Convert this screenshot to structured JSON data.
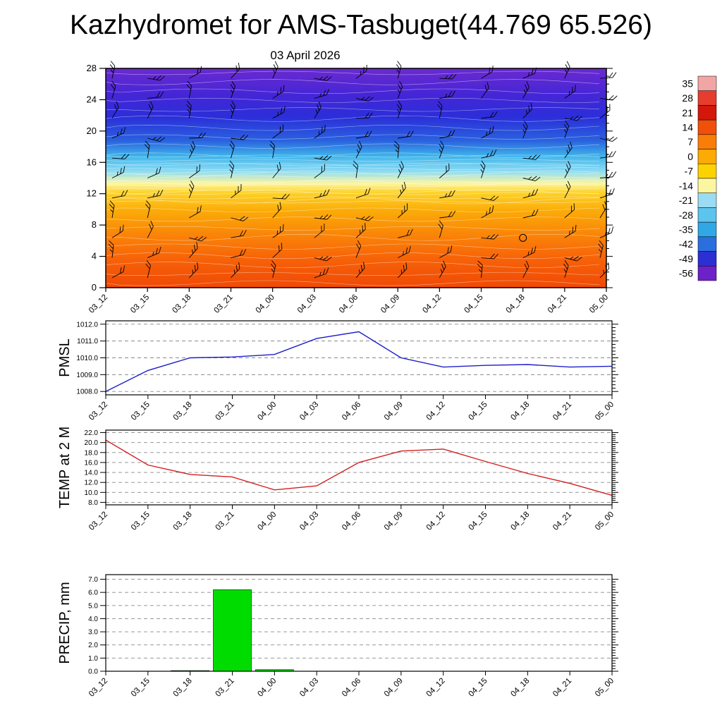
{
  "page_title": "Kazhydromet for AMS-Tasbuget(44.769 65.526)",
  "subtitle": "03 April 2026",
  "time_labels": [
    "03_12",
    "03_15",
    "03_18",
    "03_21",
    "04_00",
    "04_03",
    "04_06",
    "04_09",
    "04_12",
    "04_15",
    "04_18",
    "04_21",
    "05_00"
  ],
  "chart_data": [
    {
      "id": "cross_section",
      "type": "heatmap",
      "title": "03 April 2026",
      "description": "Time-height temperature cross-section with wind barbs and white temperature contours",
      "x": [
        "03_12",
        "03_15",
        "03_18",
        "03_21",
        "04_00",
        "04_03",
        "04_06",
        "04_09",
        "04_12",
        "04_15",
        "04_18",
        "04_21",
        "05_00"
      ],
      "ylim": [
        0,
        28
      ],
      "yticks": [
        0,
        4,
        8,
        12,
        16,
        20,
        24,
        28
      ],
      "ytick_labels": [
        "0",
        "4",
        "8",
        "12",
        "16",
        "20",
        "24",
        "28"
      ],
      "colorbar": {
        "ticks": [
          "35",
          "28",
          "21",
          "14",
          "7",
          "0",
          "-7",
          "-14",
          "-21",
          "-28",
          "-35",
          "-42",
          "-49",
          "-56"
        ],
        "colors": [
          "#f2a5a5",
          "#e63d2e",
          "#d3170a",
          "#f1500a",
          "#fa7d08",
          "#fcaa06",
          "#fdd203",
          "#fdf6a0",
          "#9adcf3",
          "#5cc4ed",
          "#30a8e6",
          "#2a6fdd",
          "#2b2fd4",
          "#6d21c8"
        ]
      },
      "gradient": [
        {
          "pos": 0.0,
          "color": "#6b2ad0"
        },
        {
          "pos": 0.12,
          "color": "#4526d6"
        },
        {
          "pos": 0.22,
          "color": "#2b2ed9"
        },
        {
          "pos": 0.33,
          "color": "#2a62df"
        },
        {
          "pos": 0.4,
          "color": "#3fb4ea"
        },
        {
          "pos": 0.47,
          "color": "#8edcf3"
        },
        {
          "pos": 0.525,
          "color": "#fdf6a0"
        },
        {
          "pos": 0.565,
          "color": "#fdd32a"
        },
        {
          "pos": 0.65,
          "color": "#fbab08"
        },
        {
          "pos": 0.76,
          "color": "#fa8408"
        },
        {
          "pos": 0.87,
          "color": "#f76208"
        },
        {
          "pos": 1.0,
          "color": "#ef4a06"
        }
      ],
      "overlays": [
        "temperature-contours",
        "wind-barbs",
        "calm-wind-circle"
      ]
    },
    {
      "id": "pmsl",
      "type": "line",
      "ylabel": "PMSL",
      "line_color": "#1e1ec8",
      "grid": "dashed",
      "x": [
        "03_12",
        "03_15",
        "03_18",
        "03_21",
        "04_00",
        "04_03",
        "04_06",
        "04_09",
        "04_12",
        "04_15",
        "04_18",
        "04_21",
        "05_00"
      ],
      "values": [
        1008.0,
        1009.25,
        1010.0,
        1010.05,
        1010.2,
        1011.15,
        1011.55,
        1010.0,
        1009.45,
        1009.55,
        1009.6,
        1009.45,
        1009.5
      ],
      "ylim": [
        1007.8,
        1012.2
      ],
      "yticks": [
        1008,
        1009,
        1010,
        1011,
        1012
      ],
      "ytick_labels": [
        "1008.0",
        "1009.0",
        "1010.0",
        "1011.0",
        "1012.0"
      ]
    },
    {
      "id": "temp2m",
      "type": "line",
      "ylabel": "TEMP at 2 M",
      "line_color": "#d42020",
      "grid": "dashed",
      "x": [
        "03_12",
        "03_15",
        "03_18",
        "03_21",
        "04_00",
        "04_03",
        "04_06",
        "04_09",
        "04_12",
        "04_15",
        "04_18",
        "04_21",
        "05_00"
      ],
      "values": [
        20.5,
        15.5,
        13.6,
        13.1,
        10.5,
        11.3,
        16.0,
        18.3,
        18.7,
        16.2,
        13.8,
        11.8,
        9.4
      ],
      "ylim": [
        7.5,
        22.5
      ],
      "yticks": [
        8,
        10,
        12,
        14,
        16,
        18,
        20,
        22
      ],
      "ytick_labels": [
        "8.0",
        "10.0",
        "12.0",
        "14.0",
        "16.0",
        "18.0",
        "20.0",
        "22.0"
      ]
    },
    {
      "id": "precip",
      "type": "bar",
      "ylabel": "PRECIP, mm",
      "bar_color": "#00dc00",
      "grid": "dashed",
      "x": [
        "03_12",
        "03_15",
        "03_18",
        "03_21",
        "04_00",
        "04_03",
        "04_06",
        "04_09",
        "04_12",
        "04_15",
        "04_18",
        "04_21",
        "05_00"
      ],
      "values": [
        0,
        0,
        0.05,
        6.2,
        0.12,
        0,
        0,
        0,
        0,
        0,
        0,
        0,
        0
      ],
      "ylim": [
        0,
        7.35
      ],
      "yticks": [
        0,
        1,
        2,
        3,
        4,
        5,
        6,
        7
      ],
      "ytick_labels": [
        "0.0",
        "1.0",
        "2.0",
        "3.0",
        "4.0",
        "5.0",
        "6.0",
        "7.0"
      ]
    }
  ]
}
